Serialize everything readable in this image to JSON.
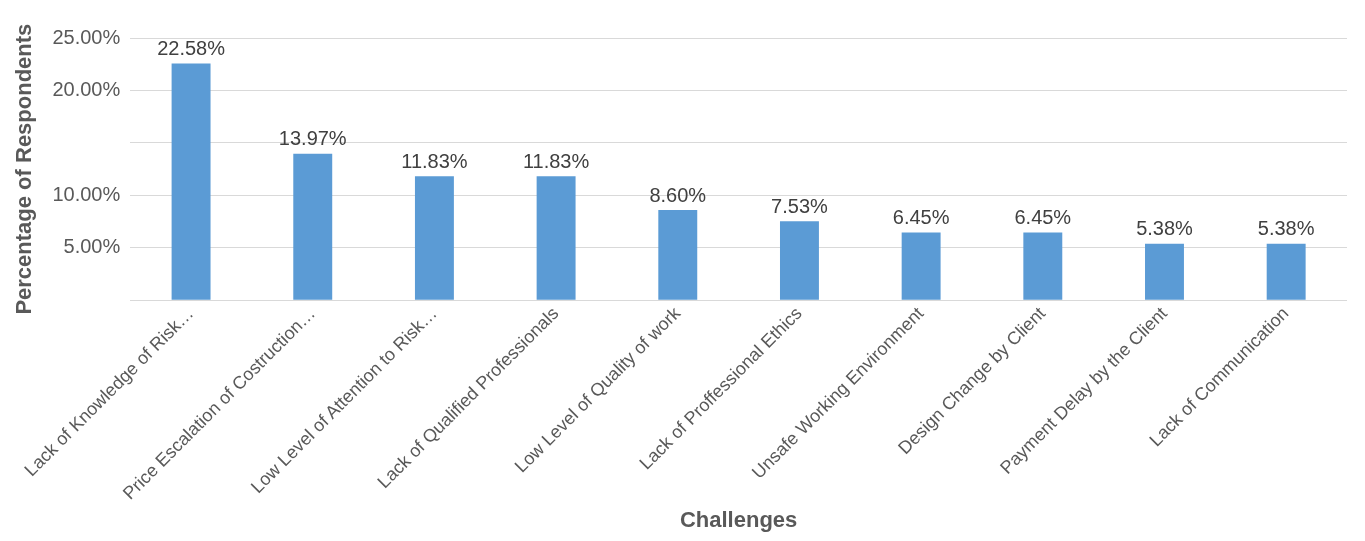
{
  "chart_data": {
    "type": "bar",
    "xlabel": "Challenges",
    "ylabel": "Percentage of Respondents",
    "categories": [
      "Lack of Knowledge of Risk…",
      "Price Escalation of Costruction…",
      "Low Level of Attention to Risk…",
      "Lack of Qualified Professionals",
      "Low Level of Quality of work",
      "Lack of Proffessional Ethics",
      "Unsafe Working Environment",
      "Design Change by Client",
      "Payment Delay by the Client",
      "Lack of Communication"
    ],
    "values": [
      22.58,
      13.97,
      11.83,
      11.83,
      8.6,
      7.53,
      6.45,
      6.45,
      5.38,
      5.38
    ],
    "value_labels": [
      "22.58%",
      "13.97%",
      "11.83%",
      "11.83%",
      "8.60%",
      "7.53%",
      "6.45%",
      "6.45%",
      "5.38%",
      "5.38%"
    ],
    "color": "#5b9bd5",
    "ylim": [
      0,
      25
    ],
    "yticks": [
      {
        "value": 0,
        "label": null
      },
      {
        "value": 5,
        "label": "5.00%"
      },
      {
        "value": 10,
        "label": "10.00%"
      },
      {
        "value": 15,
        "label": null
      },
      {
        "value": 20,
        "label": "20.00%"
      },
      {
        "value": 25,
        "label": "25.00%"
      }
    ],
    "grid": "y"
  }
}
